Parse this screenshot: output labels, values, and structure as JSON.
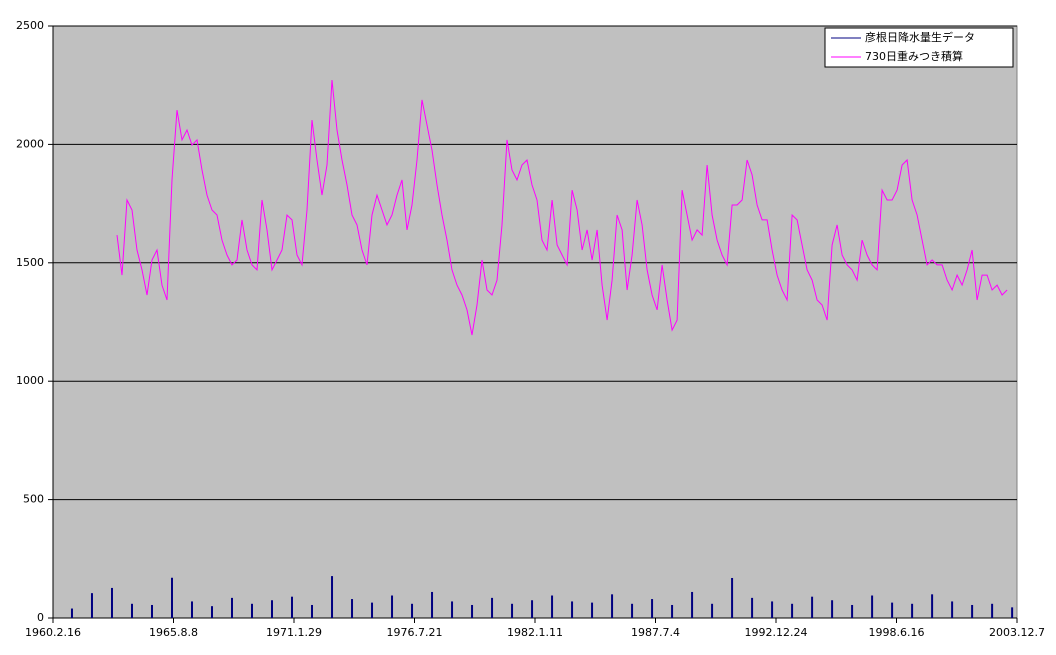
{
  "chart_data": {
    "type": "line",
    "xlim": [
      0,
      16000
    ],
    "xticks": [
      {
        "value": 0,
        "label": "1960.2.16"
      },
      {
        "value": 2000,
        "label": "1965.8.8"
      },
      {
        "value": 4000,
        "label": "1971.1.29"
      },
      {
        "value": 6000,
        "label": "1976.7.21"
      },
      {
        "value": 8000,
        "label": "1982.1.11"
      },
      {
        "value": 10000,
        "label": "1987.7.4"
      },
      {
        "value": 12000,
        "label": "1992.12.24"
      },
      {
        "value": 14000,
        "label": "1998.6.16"
      },
      {
        "value": 16000,
        "label": "2003.12.7"
      }
    ],
    "ylim": [
      0,
      2500
    ],
    "yticks": [
      0,
      500,
      1000,
      1500,
      2000,
      2500
    ],
    "grid": true,
    "legend": "top-right",
    "series": [
      {
        "name": "彦根日降水量生データ",
        "color": "#000080",
        "type": "bar",
        "x": [
          315,
          647,
          979,
          1311,
          1643,
          1975,
          2307,
          2639,
          2971,
          3303,
          3635,
          3967,
          4299,
          4631,
          4963,
          5295,
          5627,
          5959,
          6291,
          6623,
          6955,
          7287,
          7619,
          7951,
          8283,
          8615,
          8947,
          9279,
          9611,
          9943,
          10275,
          10607,
          10939,
          11271,
          11603,
          11935,
          12267,
          12599,
          12931,
          13263,
          13595,
          13927,
          14259,
          14591,
          14923,
          15255,
          15587,
          15919
        ],
        "values": [
          40,
          105,
          127,
          60,
          55,
          170,
          70,
          50,
          85,
          60,
          75,
          90,
          55,
          177,
          80,
          65,
          95,
          60,
          110,
          70,
          55,
          85,
          60,
          75,
          95,
          70,
          65,
          100,
          60,
          80,
          55,
          110,
          60,
          169,
          85,
          70,
          60,
          90,
          75,
          55,
          95,
          65,
          60,
          100,
          70,
          55,
          60,
          45
        ]
      },
      {
        "name": "730日重みつき積算",
        "color": "#ff00ff",
        "type": "line",
        "x": [
          1062,
          1145,
          1228,
          1311,
          1394,
          1477,
          1560,
          1643,
          1726,
          1809,
          1892,
          1975,
          2058,
          2141,
          2224,
          2307,
          2390,
          2473,
          2556,
          2639,
          2722,
          2805,
          2888,
          2971,
          3054,
          3137,
          3220,
          3303,
          3386,
          3469,
          3552,
          3635,
          3718,
          3801,
          3884,
          3967,
          4050,
          4133,
          4216,
          4299,
          4382,
          4465,
          4548,
          4631,
          4714,
          4797,
          4880,
          4963,
          5046,
          5129,
          5212,
          5295,
          5378,
          5461,
          5544,
          5627,
          5710,
          5793,
          5876,
          5959,
          6042,
          6125,
          6208,
          6291,
          6374,
          6457,
          6540,
          6623,
          6706,
          6789,
          6872,
          6955,
          7038,
          7121,
          7204,
          7287,
          7370,
          7453,
          7536,
          7619,
          7702,
          7785,
          7868,
          7951,
          8034,
          8117,
          8200,
          8283,
          8366,
          8449,
          8532,
          8615,
          8698,
          8781,
          8864,
          8947,
          9030,
          9113,
          9196,
          9279,
          9362,
          9445,
          9528,
          9611,
          9694,
          9777,
          9860,
          9943,
          10026,
          10109,
          10192,
          10275,
          10358,
          10441,
          10524,
          10607,
          10690,
          10773,
          10856,
          10939,
          11022,
          11105,
          11188,
          11271,
          11354,
          11437,
          11520,
          11603,
          11686,
          11769,
          11852,
          11935,
          12018,
          12101,
          12184,
          12267,
          12350,
          12433,
          12516,
          12599,
          12682,
          12765,
          12848,
          12931,
          13014,
          13097,
          13180,
          13263,
          13346,
          13429,
          13512,
          13595,
          13678,
          13761,
          13844,
          13927,
          14010,
          14093,
          14176,
          14259,
          14342,
          14425,
          14508,
          14591,
          14674,
          14757,
          14840,
          14923,
          15006,
          15089,
          15172,
          15255,
          15338,
          15421,
          15504,
          15587,
          15670,
          15753,
          15836
        ],
        "values": [
          1617,
          1448,
          1765,
          1723,
          1554,
          1470,
          1364,
          1512,
          1554,
          1406,
          1343,
          1850,
          2145,
          2019,
          2061,
          1997,
          2019,
          1892,
          1786,
          1723,
          1702,
          1596,
          1533,
          1491,
          1512,
          1681,
          1554,
          1491,
          1470,
          1765,
          1639,
          1470,
          1512,
          1554,
          1702,
          1681,
          1533,
          1491,
          1723,
          2103,
          1934,
          1786,
          1913,
          2272,
          2061,
          1934,
          1829,
          1702,
          1660,
          1554,
          1491,
          1702,
          1786,
          1723,
          1660,
          1702,
          1786,
          1850,
          1639,
          1744,
          1934,
          2188,
          2082,
          1976,
          1829,
          1702,
          1596,
          1470,
          1406,
          1364,
          1301,
          1195,
          1322,
          1512,
          1385,
          1364,
          1427,
          1660,
          2019,
          1892,
          1850,
          1913,
          1934,
          1829,
          1765,
          1596,
          1554,
          1765,
          1575,
          1533,
          1491,
          1807,
          1723,
          1554,
          1639,
          1512,
          1639,
          1406,
          1258,
          1427,
          1702,
          1639,
          1385,
          1533,
          1765,
          1660,
          1470,
          1364,
          1301,
          1491,
          1343,
          1216,
          1258,
          1807,
          1702,
          1596,
          1639,
          1617,
          1913,
          1702,
          1596,
          1533,
          1491,
          1744,
          1744,
          1765,
          1934,
          1871,
          1744,
          1681,
          1681,
          1554,
          1448,
          1385,
          1343,
          1702,
          1681,
          1575,
          1470,
          1427,
          1343,
          1322,
          1258,
          1575,
          1660,
          1533,
          1491,
          1470,
          1427,
          1596,
          1533,
          1491,
          1470,
          1807,
          1765,
          1765,
          1807,
          1913,
          1934,
          1765,
          1702,
          1596,
          1491,
          1512,
          1491,
          1491,
          1427,
          1385,
          1448,
          1406,
          1470,
          1554,
          1343,
          1448,
          1448,
          1385,
          1406,
          1364,
          1385
        ]
      }
    ]
  }
}
